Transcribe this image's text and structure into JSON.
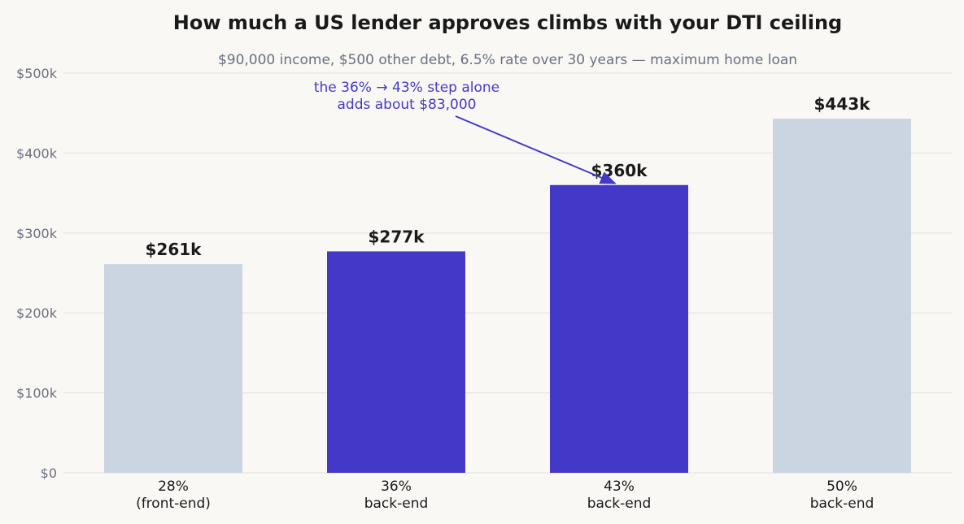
{
  "chart_data": {
    "type": "bar",
    "title": "How much a US lender approves climbs with your DTI ceiling",
    "subtitle": "$90,000 income, $500 other debt, 6.5% rate over 30 years — maximum home loan",
    "categories": [
      [
        "28%",
        "(front-end)"
      ],
      [
        "36%",
        "back-end"
      ],
      [
        "43%",
        "back-end"
      ],
      [
        "50%",
        "back-end"
      ]
    ],
    "values": [
      261,
      277,
      360,
      443
    ],
    "value_labels": [
      "$261k",
      "$277k",
      "$360k",
      "$443k"
    ],
    "highlighted": [
      false,
      true,
      true,
      false
    ],
    "ylim": [
      0,
      500
    ],
    "yticks": [
      0,
      100,
      200,
      300,
      400,
      500
    ],
    "ytick_labels": [
      "$0",
      "$100k",
      "$200k",
      "$300k",
      "$400k",
      "$500k"
    ],
    "grid": true,
    "colors": {
      "highlight": "#4438c8",
      "muted": "#cbd4e1",
      "annotation": "#4438c8"
    },
    "annotation": {
      "lines": [
        "the 36% → 43% step alone",
        "adds about $83,000"
      ],
      "points_to_category_index": 2
    }
  }
}
